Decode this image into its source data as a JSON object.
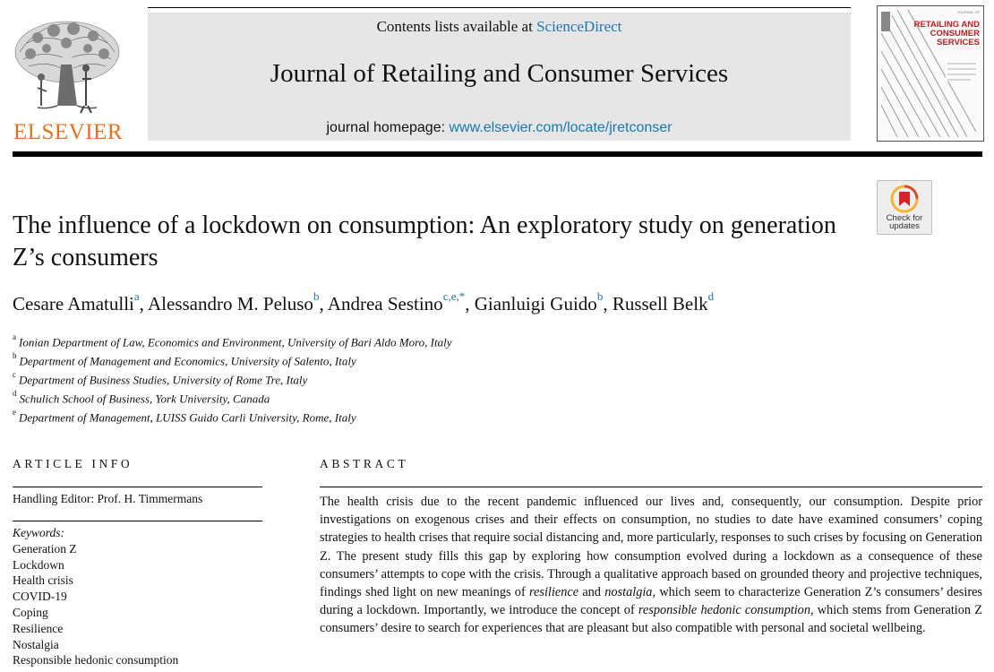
{
  "header": {
    "contents_prefix": "Contents lists available at",
    "contents_link": "ScienceDirect",
    "journal_name": "Journal of Retailing and Consumer Services",
    "homepage_prefix": "journal homepage:",
    "homepage_link": "www.elsevier.com/locate/jretconser",
    "publisher": "ELSEVIER",
    "cover_title": "RETAILING AND CONSUMER SERVICES",
    "cover_small": "JOURNAL OF"
  },
  "colors": {
    "publisher_orange": "#e9711c",
    "link_blue": "#1a77b5",
    "cover_red": "#c01c22",
    "header_band": "#e6e6e6"
  },
  "check_updates": {
    "label_line1": "Check for",
    "label_line2": "updates",
    "icon": "check-for-updates-icon"
  },
  "article": {
    "title": "The influence of a lockdown on consumption: An exploratory study on generation Z’s consumers",
    "authors": [
      {
        "name": "Cesare Amatulli",
        "sup": "a",
        "sep": ", "
      },
      {
        "name": "Alessandro M. Peluso",
        "sup": "b",
        "sep": ", "
      },
      {
        "name": "Andrea Sestino",
        "sup": "c,e,*",
        "sep": ", "
      },
      {
        "name": "Gianluigi Guido",
        "sup": "b",
        "sep": ", "
      },
      {
        "name": "Russell Belk",
        "sup": "d",
        "sep": ""
      }
    ],
    "affiliations": [
      {
        "mark": "a",
        "text": "Ionian Department of Law, Economics and Environment, University of Bari Aldo Moro, Italy"
      },
      {
        "mark": "b",
        "text": "Department of Management and Economics, University of Salento, Italy"
      },
      {
        "mark": "c",
        "text": "Department of Business Studies, University of Rome Tre, Italy"
      },
      {
        "mark": "d",
        "text": "Schulich School of Business, York University, Canada"
      },
      {
        "mark": "e",
        "text": "Department of Management, LUISS Guido Carli University, Rome, Italy"
      }
    ]
  },
  "article_info": {
    "heading": "ARTICLE INFO",
    "handling_editor": "Handling Editor: Prof. H. Timmermans",
    "keywords_label": "Keywords:",
    "keywords": [
      "Generation Z",
      "Lockdown",
      "Health crisis",
      "COVID-19",
      "Coping",
      "Resilience",
      "Nostalgia",
      "Responsible hedonic consumption"
    ]
  },
  "abstract": {
    "heading": "ABSTRACT",
    "p1": "The health crisis due to the recent pandemic influenced our lives and, consequently, our consumption. Despite prior investigations on exogenous crises and their effects on consumption, no studies to date have examined consumers’ coping strategies to health crises that require social distancing and, more particularly, responses to such crises by focusing on Generation Z. The present study fills this gap by exploring how consumption evolved during a lockdown as a consequence of these consumers’ attempts to cope with the crisis. Through a qualitative approach based on grounded theory and projective techniques, findings shed light on new meanings of ",
    "em1": "resilience",
    "p2": " and ",
    "em2": "nostalgia",
    "p3": ", which seem to characterize Generation Z’s consumers’ desires during a lockdown. Importantly, we introduce the concept of ",
    "em3": "responsible hedonic consumption",
    "p4": ", which stems from Generation Z consumers’ desire to search for experiences that are pleasant but also compatible with personal and societal wellbeing."
  }
}
